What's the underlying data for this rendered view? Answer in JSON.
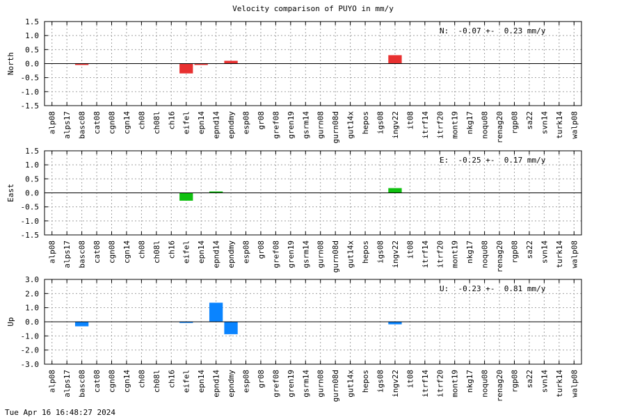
{
  "title": "Velocity comparison of PUYO in mm/y",
  "timestamp": "Tue Apr 16 16:48:27 2024",
  "colors": {
    "North": "#e83030",
    "East": "#10c010",
    "Up": "#0a84ff"
  },
  "chart_data": [
    {
      "type": "bar",
      "ylabel": "North",
      "ylim": [
        -1.5,
        1.5
      ],
      "yticks": [
        "1.5",
        "1.0",
        "0.5",
        "0.0",
        "-0.5",
        "-1.0",
        "-1.5"
      ],
      "grid": true,
      "annotation": "N:  -0.07 +-  0.23 mm/y",
      "categories": [
        "alp08",
        "alps17",
        "basc08",
        "cat08",
        "cgn08",
        "cgn14",
        "ch08",
        "ch08l",
        "ch16",
        "eifel",
        "epn14",
        "epnd14",
        "epndmy",
        "esp08",
        "gr08",
        "gref08",
        "gren19",
        "gsrm14",
        "gurn08",
        "gurn08d",
        "gut14x",
        "hepos",
        "igs08",
        "ingv22",
        "it08",
        "itrf14",
        "itrf20",
        "mont19",
        "nkg17",
        "noqu08",
        "renag20",
        "rgp08",
        "sa22",
        "svn14",
        "turk14",
        "walp08"
      ],
      "values": [
        null,
        null,
        -0.05,
        null,
        null,
        null,
        null,
        null,
        null,
        -0.35,
        -0.05,
        null,
        0.1,
        null,
        null,
        null,
        null,
        null,
        null,
        null,
        null,
        null,
        null,
        0.3,
        null,
        null,
        null,
        null,
        null,
        null,
        null,
        null,
        null,
        null,
        null,
        null
      ]
    },
    {
      "type": "bar",
      "ylabel": "East",
      "ylim": [
        -1.5,
        1.5
      ],
      "yticks": [
        "1.5",
        "1.0",
        "0.5",
        "0.0",
        "-0.5",
        "-1.0",
        "-1.5"
      ],
      "grid": true,
      "annotation": "E:  -0.25 +-  0.17 mm/y",
      "categories": [
        "alp08",
        "alps17",
        "basc08",
        "cat08",
        "cgn08",
        "cgn14",
        "ch08",
        "ch08l",
        "ch16",
        "eifel",
        "epn14",
        "epnd14",
        "epndmy",
        "esp08",
        "gr08",
        "gref08",
        "gren19",
        "gsrm14",
        "gurn08",
        "gurn08d",
        "gut14x",
        "hepos",
        "igs08",
        "ingv22",
        "it08",
        "itrf14",
        "itrf20",
        "mont19",
        "nkg17",
        "noqu08",
        "renag20",
        "rgp08",
        "sa22",
        "svn14",
        "turk14",
        "walp08"
      ],
      "values": [
        null,
        null,
        null,
        null,
        null,
        null,
        null,
        null,
        null,
        -0.28,
        null,
        0.05,
        null,
        null,
        null,
        null,
        null,
        null,
        null,
        null,
        null,
        null,
        null,
        0.17,
        null,
        null,
        null,
        null,
        null,
        null,
        null,
        null,
        null,
        null,
        null,
        null
      ]
    },
    {
      "type": "bar",
      "ylabel": "Up",
      "ylim": [
        -3.0,
        3.0
      ],
      "yticks": [
        "3.0",
        "2.0",
        "1.0",
        "0.0",
        "-1.0",
        "-2.0",
        "-3.0"
      ],
      "grid": true,
      "annotation": "U:  -0.23 +-  0.81 mm/y",
      "categories": [
        "alp08",
        "alps17",
        "basc08",
        "cat08",
        "cgn08",
        "cgn14",
        "ch08",
        "ch08l",
        "ch16",
        "eifel",
        "epn14",
        "epnd14",
        "epndmy",
        "esp08",
        "gr08",
        "gref08",
        "gren19",
        "gsrm14",
        "gurn08",
        "gurn08d",
        "gut14x",
        "hepos",
        "igs08",
        "ingv22",
        "it08",
        "itrf14",
        "itrf20",
        "mont19",
        "nkg17",
        "noqu08",
        "renag20",
        "rgp08",
        "sa22",
        "svn14",
        "turk14",
        "walp08"
      ],
      "values": [
        null,
        null,
        -0.32,
        null,
        null,
        null,
        null,
        null,
        null,
        -0.08,
        null,
        1.35,
        -0.88,
        null,
        null,
        null,
        null,
        null,
        null,
        null,
        null,
        null,
        null,
        -0.18,
        null,
        null,
        null,
        null,
        null,
        null,
        null,
        null,
        null,
        null,
        null,
        null
      ]
    }
  ]
}
